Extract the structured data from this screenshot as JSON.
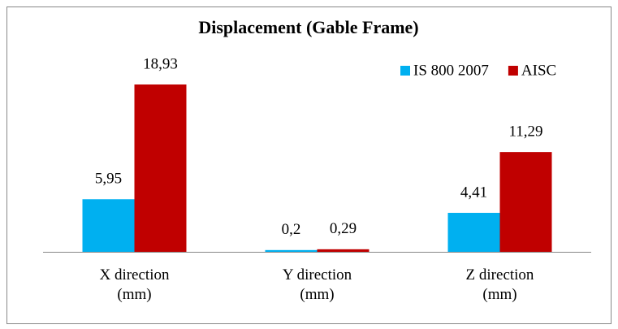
{
  "chart_data": {
    "type": "bar",
    "title": "Displacement  (Gable Frame)",
    "categories": [
      "X direction (mm)",
      "Y direction (mm)",
      "Z direction (mm)"
    ],
    "series": [
      {
        "name": "IS 800 2007",
        "color": "#00b0f0",
        "values": [
          5.95,
          0.2,
          4.41
        ],
        "value_labels": [
          "5,95",
          "0,2",
          "4,41"
        ]
      },
      {
        "name": "AISC",
        "color": "#c00000",
        "values": [
          18.93,
          0.29,
          11.29
        ],
        "value_labels": [
          "18,93",
          "0,29",
          "11,29"
        ]
      }
    ],
    "legend": "top-right"
  }
}
